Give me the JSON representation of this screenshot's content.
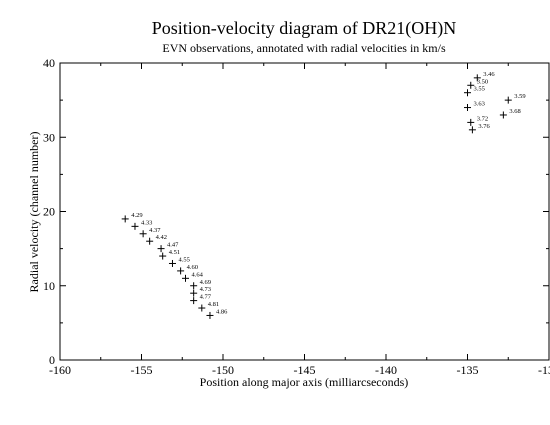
{
  "chart_data": {
    "type": "scatter",
    "title": "Position-velocity diagram of DR21(OH)N",
    "subtitle": "EVN observations, annotated with radial velocities in km/s",
    "xlabel": "Position along major axis (milliarcseconds)",
    "ylabel": "Radial velocity (channel number)",
    "xlim": [
      -160,
      -130
    ],
    "ylim": [
      0,
      40
    ],
    "xticks": [
      -160,
      -155,
      -150,
      -145,
      -140,
      -135,
      -130
    ],
    "yticks": [
      0,
      10,
      20,
      30,
      40
    ],
    "marker": "plus",
    "grid": false,
    "points": [
      {
        "x": -156.0,
        "y": 19,
        "label": "4.29"
      },
      {
        "x": -155.4,
        "y": 18,
        "label": "4.33"
      },
      {
        "x": -154.9,
        "y": 17,
        "label": "4.37"
      },
      {
        "x": -154.5,
        "y": 16,
        "label": "4.42"
      },
      {
        "x": -153.8,
        "y": 15,
        "label": "4.47"
      },
      {
        "x": -153.7,
        "y": 14,
        "label": "4.51"
      },
      {
        "x": -153.1,
        "y": 13,
        "label": "4.55"
      },
      {
        "x": -152.6,
        "y": 12,
        "label": "4.60"
      },
      {
        "x": -152.3,
        "y": 11,
        "label": "4.64"
      },
      {
        "x": -151.8,
        "y": 10,
        "label": "4.69"
      },
      {
        "x": -151.8,
        "y": 9,
        "label": "4.73"
      },
      {
        "x": -151.8,
        "y": 8,
        "label": "4.77"
      },
      {
        "x": -151.3,
        "y": 7,
        "label": "4.81"
      },
      {
        "x": -150.8,
        "y": 6,
        "label": "4.86"
      },
      {
        "x": -134.4,
        "y": 38,
        "label": "3.46"
      },
      {
        "x": -134.8,
        "y": 37,
        "label": "3.50"
      },
      {
        "x": -135.0,
        "y": 36,
        "label": "3.55"
      },
      {
        "x": -132.5,
        "y": 35,
        "label": "3.59"
      },
      {
        "x": -135.0,
        "y": 34,
        "label": "3.63"
      },
      {
        "x": -132.8,
        "y": 33,
        "label": "3.68"
      },
      {
        "x": -134.8,
        "y": 32,
        "label": "3.72"
      },
      {
        "x": -134.7,
        "y": 31,
        "label": "3.76"
      }
    ]
  }
}
